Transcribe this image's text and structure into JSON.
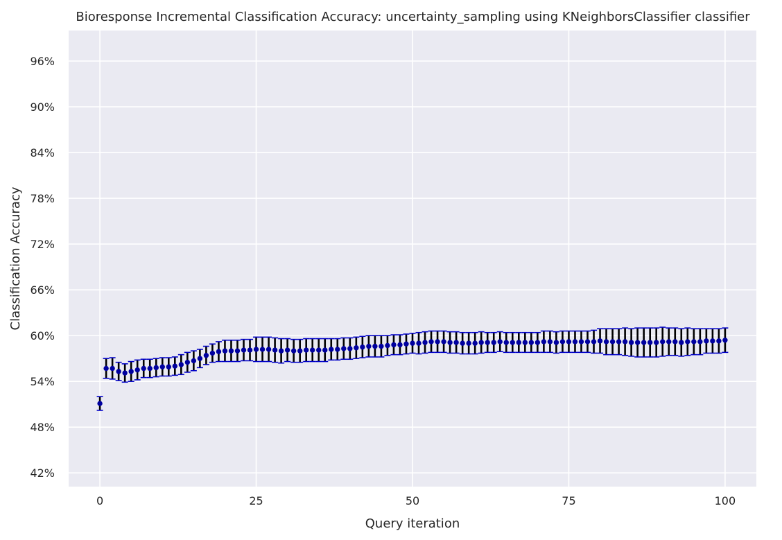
{
  "chart_data": {
    "type": "scatter",
    "title": "Bioresponse Incremental Classification Accuracy: uncertainty_sampling using KNeighborsClassifier classifier",
    "xlabel": "Query iteration",
    "ylabel": "Classification Accuracy",
    "xlim": [
      -5,
      105
    ],
    "ylim": [
      0.402,
      1.0
    ],
    "x_ticks": [
      0,
      25,
      50,
      75,
      100
    ],
    "y_ticks": [
      0.42,
      0.48,
      0.54,
      0.6,
      0.66,
      0.72,
      0.78,
      0.84,
      0.9,
      0.96
    ],
    "y_tick_labels": [
      "42%",
      "48%",
      "54%",
      "60%",
      "66%",
      "72%",
      "78%",
      "84%",
      "90%",
      "96%"
    ],
    "grid": true,
    "background": "#eaeaf2",
    "marker_color": "#0000a0",
    "cap_color": "#0000c8",
    "errorbar_color": "#000000",
    "series": [
      {
        "x": [
          0,
          1,
          2,
          3,
          4,
          5,
          6,
          7,
          8,
          9,
          10,
          11,
          12,
          13,
          14,
          15,
          16,
          17,
          18,
          19,
          20,
          21,
          22,
          23,
          24,
          25,
          26,
          27,
          28,
          29,
          30,
          31,
          32,
          33,
          34,
          35,
          36,
          37,
          38,
          39,
          40,
          41,
          42,
          43,
          44,
          45,
          46,
          47,
          48,
          49,
          50,
          51,
          52,
          53,
          54,
          55,
          56,
          57,
          58,
          59,
          60,
          61,
          62,
          63,
          64,
          65,
          66,
          67,
          68,
          69,
          70,
          71,
          72,
          73,
          74,
          75,
          76,
          77,
          78,
          79,
          80,
          81,
          82,
          83,
          84,
          85,
          86,
          87,
          88,
          89,
          90,
          91,
          92,
          93,
          94,
          95,
          96,
          97,
          98,
          99,
          100
        ],
        "y": [
          0.511,
          0.557,
          0.557,
          0.553,
          0.551,
          0.553,
          0.555,
          0.557,
          0.557,
          0.558,
          0.559,
          0.559,
          0.56,
          0.562,
          0.565,
          0.567,
          0.57,
          0.574,
          0.577,
          0.579,
          0.58,
          0.58,
          0.58,
          0.581,
          0.581,
          0.582,
          0.582,
          0.582,
          0.581,
          0.58,
          0.581,
          0.58,
          0.58,
          0.581,
          0.581,
          0.581,
          0.581,
          0.582,
          0.582,
          0.583,
          0.583,
          0.584,
          0.585,
          0.586,
          0.586,
          0.586,
          0.587,
          0.588,
          0.588,
          0.589,
          0.59,
          0.59,
          0.591,
          0.592,
          0.592,
          0.592,
          0.591,
          0.591,
          0.59,
          0.59,
          0.59,
          0.591,
          0.591,
          0.591,
          0.592,
          0.591,
          0.591,
          0.591,
          0.591,
          0.591,
          0.591,
          0.592,
          0.592,
          0.591,
          0.592,
          0.592,
          0.592,
          0.592,
          0.592,
          0.592,
          0.593,
          0.592,
          0.592,
          0.592,
          0.592,
          0.591,
          0.591,
          0.591,
          0.591,
          0.591,
          0.592,
          0.592,
          0.592,
          0.591,
          0.592,
          0.592,
          0.592,
          0.593,
          0.593,
          0.593,
          0.594
        ],
        "err": [
          0.009,
          0.013,
          0.014,
          0.012,
          0.012,
          0.013,
          0.013,
          0.012,
          0.012,
          0.012,
          0.012,
          0.012,
          0.012,
          0.013,
          0.013,
          0.013,
          0.012,
          0.012,
          0.012,
          0.013,
          0.014,
          0.014,
          0.014,
          0.014,
          0.014,
          0.016,
          0.016,
          0.016,
          0.016,
          0.016,
          0.015,
          0.015,
          0.015,
          0.015,
          0.015,
          0.015,
          0.015,
          0.014,
          0.014,
          0.014,
          0.014,
          0.014,
          0.014,
          0.014,
          0.014,
          0.014,
          0.013,
          0.013,
          0.013,
          0.013,
          0.013,
          0.014,
          0.014,
          0.014,
          0.014,
          0.014,
          0.014,
          0.014,
          0.014,
          0.014,
          0.014,
          0.014,
          0.013,
          0.013,
          0.013,
          0.013,
          0.013,
          0.013,
          0.013,
          0.013,
          0.013,
          0.014,
          0.014,
          0.014,
          0.014,
          0.014,
          0.014,
          0.014,
          0.014,
          0.015,
          0.016,
          0.017,
          0.017,
          0.017,
          0.018,
          0.018,
          0.019,
          0.019,
          0.019,
          0.019,
          0.019,
          0.018,
          0.018,
          0.018,
          0.018,
          0.017,
          0.017,
          0.016,
          0.016,
          0.016,
          0.016
        ]
      }
    ]
  }
}
